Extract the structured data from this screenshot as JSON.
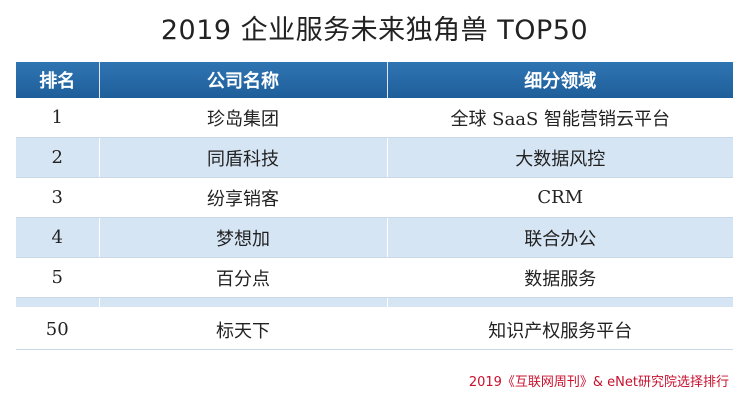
{
  "title": "2019 企业服务未来独角兽 TOP50",
  "header": {
    "col_rank": "排名",
    "col_company": "公司名称",
    "col_field": "细分领域"
  },
  "rows": [
    {
      "rank": "1",
      "company": "珍岛集团",
      "field": "全球 SaaS 智能营销云平台"
    },
    {
      "rank": "2",
      "company": "同盾科技",
      "field": "大数据风控"
    },
    {
      "rank": "3",
      "company": "纷享销客",
      "field": "CRM"
    },
    {
      "rank": "4",
      "company": "梦想加",
      "field": "联合办公"
    },
    {
      "rank": "5",
      "company": "百分点",
      "field": "数据服务"
    },
    {
      "rank": "50",
      "company": "标天下",
      "field": "知识产权服务平台"
    }
  ],
  "source": "2019《互联网周刊》& eNet研究院选择排行",
  "colors": {
    "header_bg": "#1e5f9a",
    "stripe": "#d6e5f4",
    "source_text": "#c8102e"
  }
}
